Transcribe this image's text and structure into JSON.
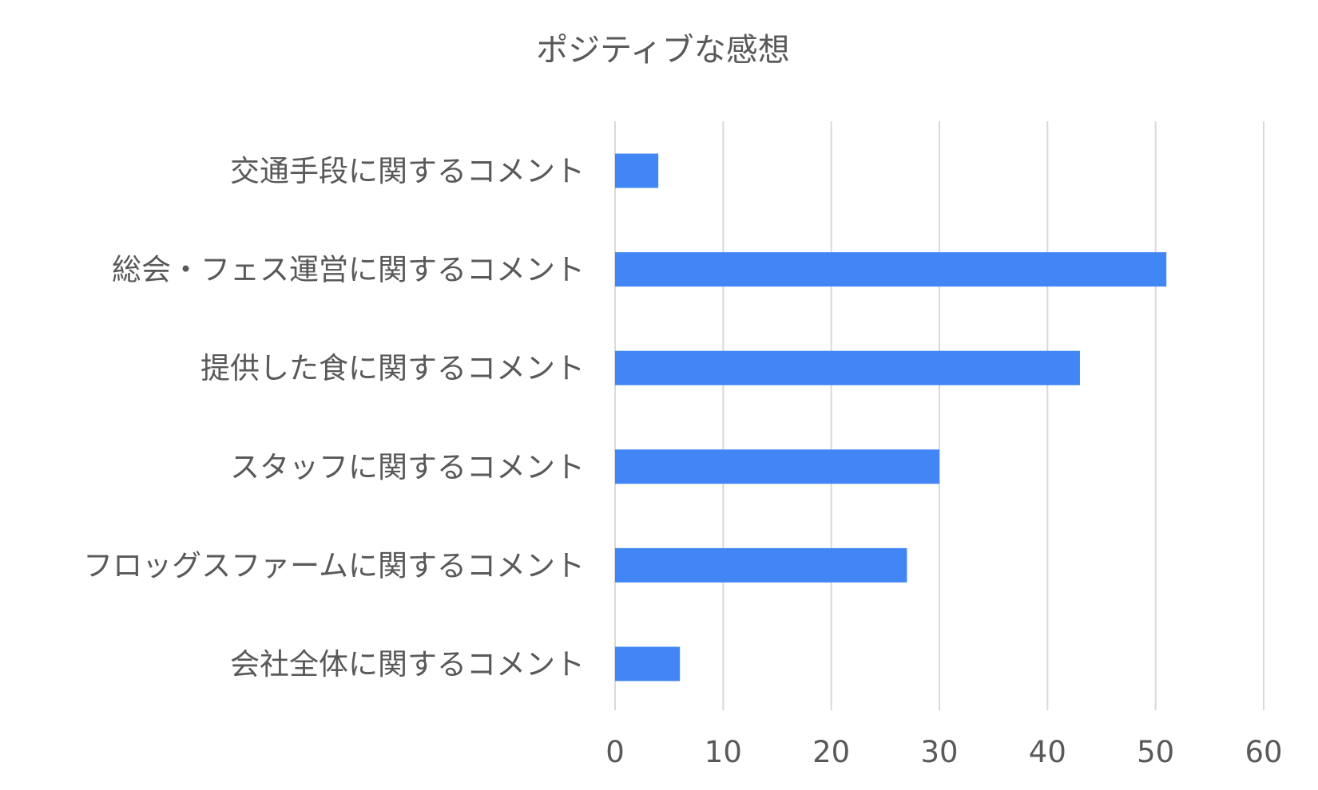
{
  "chart_data": {
    "type": "bar",
    "orientation": "horizontal",
    "title": "ポジティブな感想",
    "xlabel": "",
    "ylabel": "",
    "categories": [
      "交通手段に関するコメント",
      "総会・フェス運営に関するコメント",
      "提供した食に関するコメント",
      "スタッフに関するコメント",
      "フロッグスファームに関するコメント",
      "会社全体に関するコメント"
    ],
    "values": [
      4,
      51,
      43,
      30,
      27,
      6
    ],
    "xlim": [
      0,
      60
    ],
    "ticks": [
      0,
      10,
      20,
      30,
      40,
      50,
      60
    ],
    "grid": true,
    "legend": "none",
    "colors": {
      "bar": "#4285f4",
      "grid": "#d9d9d9",
      "text": "#595959"
    }
  }
}
